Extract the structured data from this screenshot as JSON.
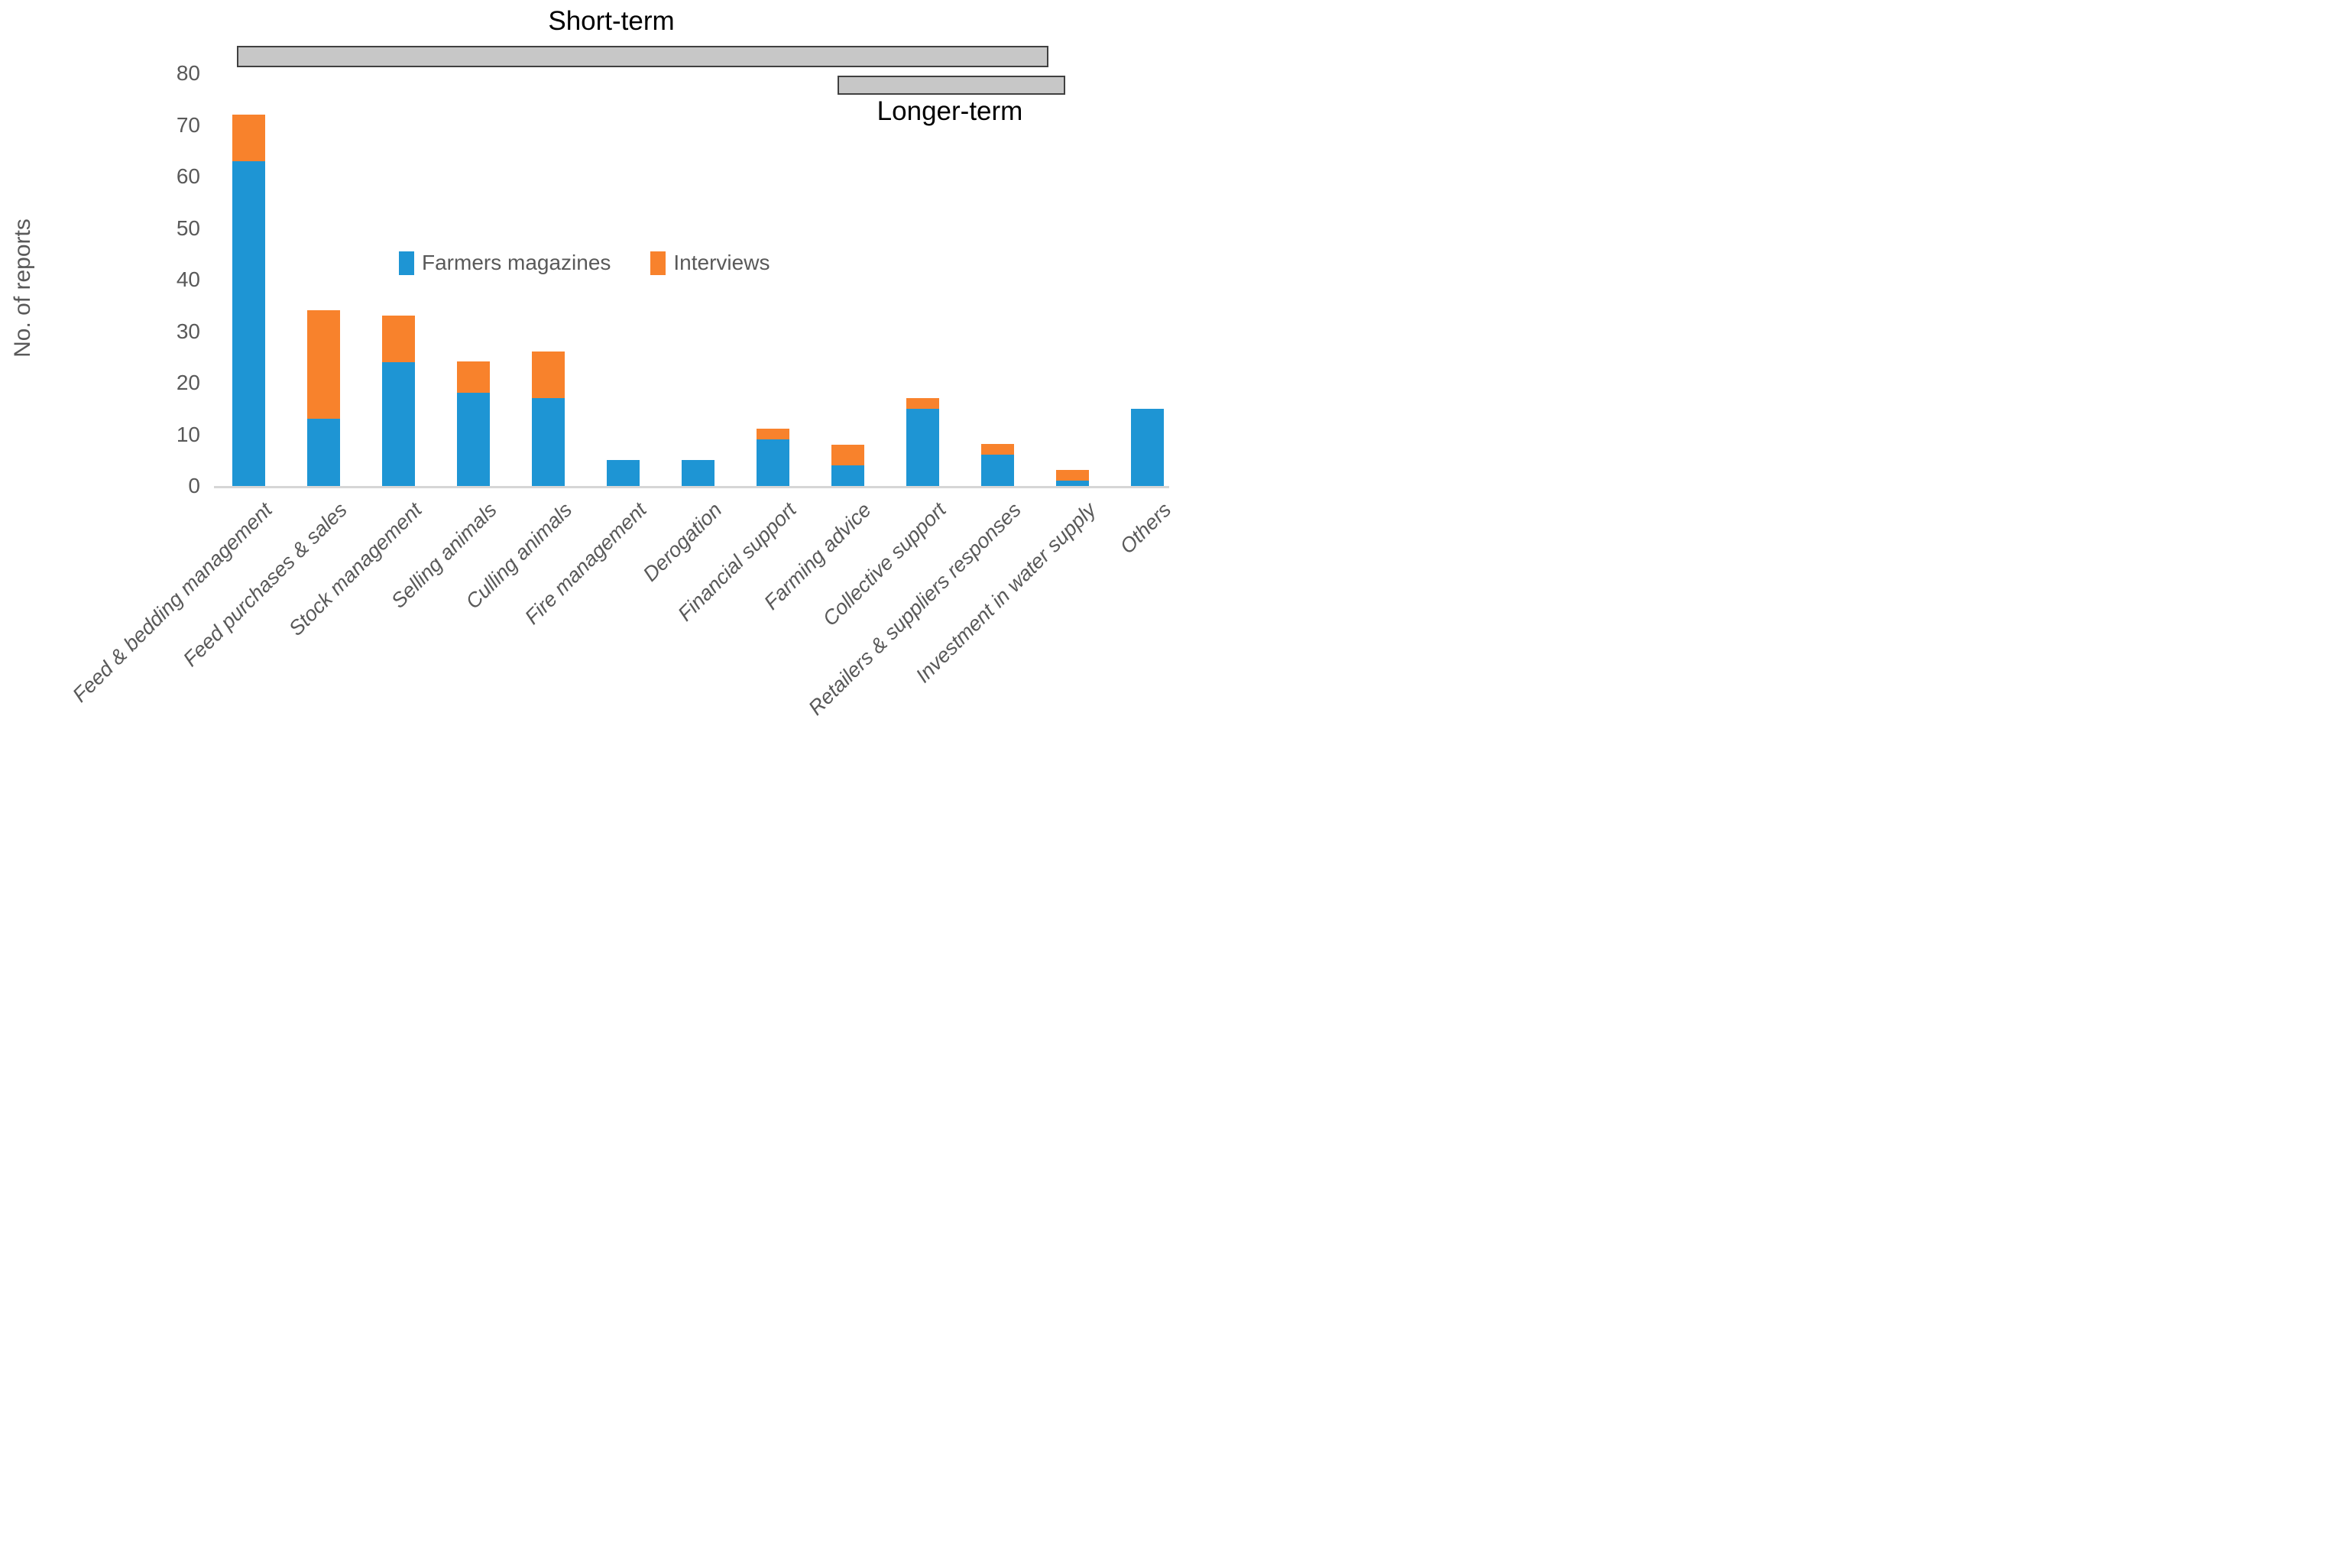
{
  "chart_data": {
    "type": "bar",
    "stacked": true,
    "title": "",
    "xlabel": "",
    "ylabel": "No. of reports",
    "ylim": [
      0,
      80
    ],
    "ytick_step": 10,
    "grid": false,
    "legend_position": "center-inside",
    "categories": [
      "Feed & bedding management",
      "Feed purchases & sales",
      "Stock management",
      "Selling animals",
      "Culling animals",
      "Fire management",
      "Derogation",
      "Financial support",
      "Farming advice",
      "Collective support",
      "Retailers & suppliers responses",
      "Investment in water supply",
      "Others"
    ],
    "series": [
      {
        "name": "Farmers magazines",
        "color": "#1e95d4",
        "values": [
          63,
          13,
          24,
          18,
          17,
          5,
          5,
          9,
          4,
          15,
          6,
          1,
          15
        ]
      },
      {
        "name": "Interviews",
        "color": "#f8822c",
        "values": [
          9,
          21,
          9,
          6,
          9,
          0,
          0,
          2,
          4,
          2,
          2,
          2,
          0
        ]
      }
    ],
    "annotations": [
      {
        "label": "Short-term",
        "from_category": "Feed & bedding management",
        "to_category": "Retailers & suppliers responses"
      },
      {
        "label": "Longer-term",
        "from_category": "Farming advice",
        "to_category": "Investment in water supply"
      }
    ],
    "colors": {
      "bracket_fill": "#c7c7c7",
      "bracket_border": "#404040",
      "axis_line": "#d6d6d6",
      "tick_text": "#595959",
      "annotation_text": "#000000"
    }
  }
}
